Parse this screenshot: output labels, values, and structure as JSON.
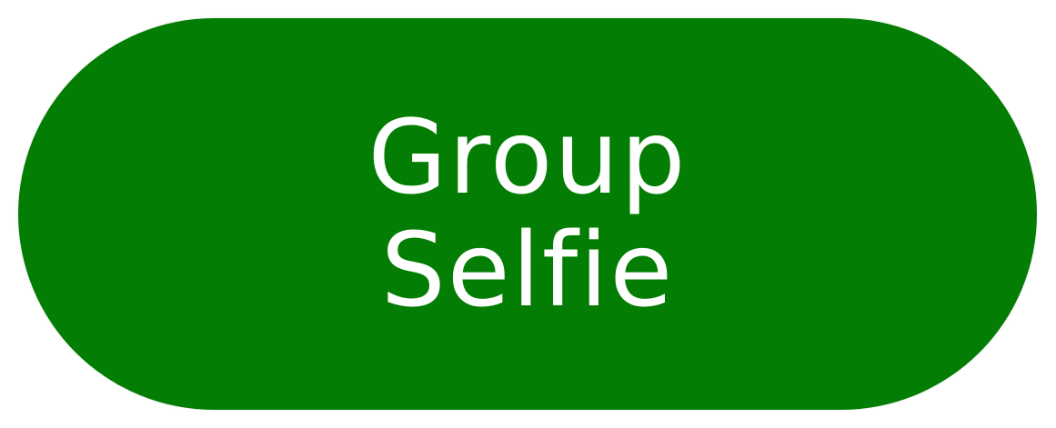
{
  "button": {
    "label_line_1": "Group",
    "label_line_2": "Selfie",
    "background_color": "#037d03",
    "text_color": "#ffffff"
  }
}
